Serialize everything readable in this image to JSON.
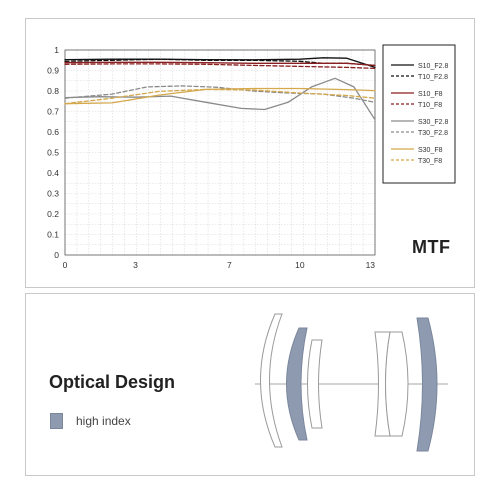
{
  "chart_data": {
    "type": "line",
    "title": "MTF",
    "xlabel": "",
    "ylabel": "",
    "xlim": [
      0,
      13.2
    ],
    "ylim": [
      0,
      1
    ],
    "x_ticks": [
      "0",
      "3",
      "7",
      "10",
      "13"
    ],
    "y_ticks": [
      "0",
      "0.1",
      "0.2",
      "0.3",
      "0.4",
      "0.5",
      "0.6",
      "0.7",
      "0.8",
      "0.9",
      "1"
    ],
    "grid": true,
    "legend_position": "right",
    "series": [
      {
        "name": "S10_F2.8",
        "color": "#111111",
        "dash": false,
        "x": [
          0,
          2,
          4,
          6,
          8,
          10,
          11,
          12,
          13.2
        ],
        "y": [
          0.953,
          0.955,
          0.955,
          0.953,
          0.952,
          0.955,
          0.962,
          0.96,
          0.915
        ]
      },
      {
        "name": "T10_F2.8",
        "color": "#111111",
        "dash": true,
        "x": [
          0,
          2,
          4,
          6,
          8,
          10,
          11,
          12,
          13.2
        ],
        "y": [
          0.945,
          0.95,
          0.955,
          0.95,
          0.95,
          0.945,
          0.935,
          0.935,
          0.925
        ]
      },
      {
        "name": "S10_F8",
        "color": "#8b1e1e",
        "dash": false,
        "x": [
          0,
          2,
          4,
          6,
          8,
          10,
          12,
          13.2
        ],
        "y": [
          0.938,
          0.94,
          0.94,
          0.938,
          0.935,
          0.935,
          0.935,
          0.925
        ]
      },
      {
        "name": "T10_F8",
        "color": "#8b1e1e",
        "dash": true,
        "x": [
          0,
          2,
          4,
          6,
          8,
          10,
          12,
          13.2
        ],
        "y": [
          0.93,
          0.932,
          0.932,
          0.93,
          0.925,
          0.92,
          0.915,
          0.91
        ]
      },
      {
        "name": "S30_F2.8",
        "color": "#8a8a8a",
        "dash": false,
        "x": [
          0,
          1.5,
          3,
          4.5,
          6,
          7.5,
          8.5,
          9.5,
          10.5,
          11.5,
          12.3,
          13.2
        ],
        "y": [
          0.768,
          0.772,
          0.77,
          0.775,
          0.745,
          0.715,
          0.71,
          0.745,
          0.82,
          0.862,
          0.82,
          0.66
        ]
      },
      {
        "name": "T30_F2.8",
        "color": "#8a8a8a",
        "dash": true,
        "x": [
          0,
          2,
          3.5,
          5,
          6.5,
          8,
          9.5,
          11,
          12.3,
          13.2
        ],
        "y": [
          0.765,
          0.785,
          0.82,
          0.825,
          0.818,
          0.8,
          0.79,
          0.785,
          0.765,
          0.745
        ]
      },
      {
        "name": "S30_F8",
        "color": "#d4a84b",
        "dash": false,
        "x": [
          0,
          2,
          4,
          6,
          8,
          10,
          12,
          13.2
        ],
        "y": [
          0.738,
          0.742,
          0.78,
          0.808,
          0.812,
          0.812,
          0.807,
          0.802
        ]
      },
      {
        "name": "T30_F8",
        "color": "#d4a84b",
        "dash": true,
        "x": [
          0,
          2,
          4,
          6,
          8,
          10,
          12,
          13.2
        ],
        "y": [
          0.738,
          0.765,
          0.798,
          0.808,
          0.805,
          0.79,
          0.778,
          0.765
        ]
      }
    ]
  },
  "optical": {
    "title": "Optical Design",
    "legend_label": "high index",
    "high_index_color": "#8e9ab0"
  }
}
